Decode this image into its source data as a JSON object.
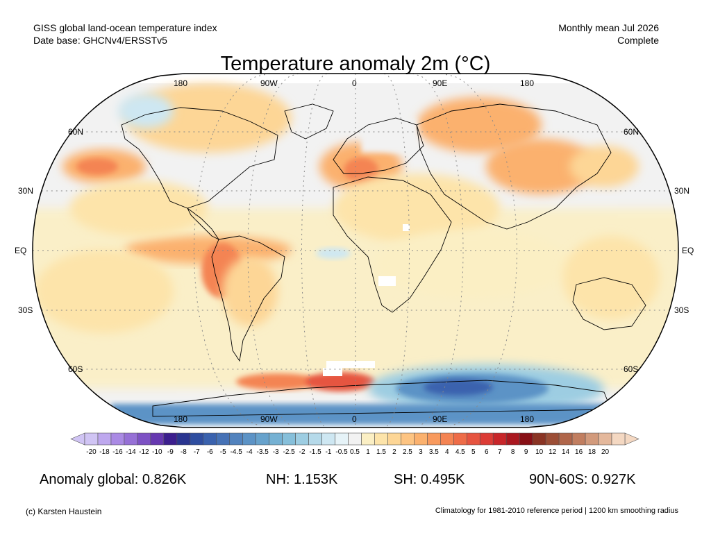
{
  "header": {
    "dataset_line": "GISS global land-ocean temperature index",
    "database_line": "Date base: GHCNv4/ERSSTv5",
    "period_line": "Monthly mean Jul 2026",
    "status_line": "Complete"
  },
  "map": {
    "title": "Temperature anomaly 2m (°C)",
    "projection": "Robinson",
    "lon_labels_top": [
      "180",
      "90W",
      "0",
      "90E",
      "180"
    ],
    "lon_labels_bottom": [
      "180",
      "90W",
      "0",
      "90E",
      "180"
    ],
    "lat_labels_left": [
      "60N",
      "30N",
      "EQ",
      "30S",
      "60S"
    ],
    "lat_labels_right": [
      "60N",
      "30N",
      "EQ",
      "30S",
      "60S"
    ],
    "graticule": "dotted gray",
    "missing_data_color": "#ffffff"
  },
  "colorbar": {
    "tick_labels": [
      "-20",
      "-18",
      "-16",
      "-14",
      "-12",
      "-10",
      "-9",
      "-8",
      "-7",
      "-6",
      "-5",
      "-4.5",
      "-4",
      "-3.5",
      "-3",
      "-2.5",
      "-2",
      "-1.5",
      "-1",
      "-0.5",
      "0.5",
      "1",
      "1.5",
      "2",
      "2.5",
      "3",
      "3.5",
      "4",
      "4.5",
      "5",
      "6",
      "7",
      "8",
      "9",
      "10",
      "12",
      "14",
      "16",
      "18",
      "20"
    ],
    "colors": [
      "#d0c4f4",
      "#bea8ee",
      "#aa8ae4",
      "#9670d6",
      "#7d52c4",
      "#6638b0",
      "#3c1e8e",
      "#2a3590",
      "#2f4ea0",
      "#3a62ae",
      "#4672b6",
      "#5283be",
      "#5c93c6",
      "#67a2cc",
      "#75b1d3",
      "#86bfda",
      "#9dcde2",
      "#b6daea",
      "#cee7f2",
      "#e6f3f8",
      "#f2f2f2",
      "#fbefc4",
      "#fde4aa",
      "#fdd696",
      "#fdc482",
      "#fbb16e",
      "#f89a5e",
      "#f48453",
      "#ee6c48",
      "#e65440",
      "#dc3c36",
      "#c8262a",
      "#aa1820",
      "#881016",
      "#8a3424",
      "#9c4e36",
      "#b0664a",
      "#c17e60",
      "#d29a7c",
      "#e4b89c",
      "#f4d8c2"
    ]
  },
  "stats": {
    "global": "Anomaly global: 0.826K",
    "nh": "NH: 1.153K",
    "sh": "SH: 0.495K",
    "arctic": "90N-60S: 0.927K"
  },
  "footer": {
    "credit": "(c) Karsten Haustein",
    "note": "Climatology for 1981-2010 reference period | 1200 km smoothing radius"
  }
}
